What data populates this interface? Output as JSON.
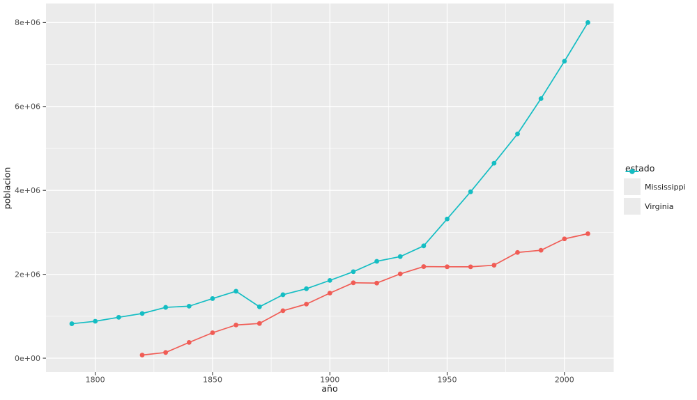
{
  "chart_data": {
    "type": "line",
    "title": "",
    "xlabel": "año",
    "ylabel": "poblacion",
    "legend_title": "estado",
    "legend_position": "right",
    "grid": true,
    "panel_bg": "#EBEBEB",
    "grid_color": "#FFFFFF",
    "tick_mark_color": "#333333",
    "tick_label_color": "#4D4D4D",
    "x": [
      1790,
      1800,
      1810,
      1820,
      1830,
      1840,
      1850,
      1860,
      1870,
      1880,
      1890,
      1900,
      1910,
      1920,
      1930,
      1940,
      1950,
      1960,
      1970,
      1980,
      1990,
      2000,
      2010
    ],
    "series": [
      {
        "name": "Mississippi",
        "color": "#F05C55",
        "values": [
          null,
          null,
          null,
          75448,
          136621,
          375651,
          606526,
          791305,
          827922,
          1131597,
          1289600,
          1551270,
          1797114,
          1790618,
          2009821,
          2183796,
          2178914,
          2178141,
          2216912,
          2520638,
          2573216,
          2844658,
          2967297
        ]
      },
      {
        "name": "Virginia",
        "color": "#14BDC3",
        "values": [
          821287,
          880200,
          974600,
          1065366,
          1211405,
          1239797,
          1421661,
          1596318,
          1225163,
          1512565,
          1655980,
          1854184,
          2061612,
          2309187,
          2421851,
          2677773,
          3318680,
          3966949,
          4648494,
          5346818,
          6187358,
          7078515,
          8001024
        ]
      }
    ],
    "x_ticks": {
      "values": [
        1800,
        1850,
        1900,
        1950,
        2000
      ],
      "labels": [
        "1800",
        "1850",
        "1900",
        "1950",
        "2000"
      ]
    },
    "y_ticks": {
      "values": [
        0,
        2000000,
        4000000,
        6000000,
        8000000
      ],
      "labels": [
        "0e+00",
        "2e+06",
        "4e+06",
        "6e+06",
        "8e+06"
      ]
    },
    "x_minor": [
      1825,
      1875,
      1925,
      1975
    ],
    "y_minor": [
      1000000,
      3000000,
      5000000,
      7000000
    ],
    "xlim": [
      1779,
      2021
    ],
    "ylim": [
      -332000,
      8455000
    ]
  }
}
